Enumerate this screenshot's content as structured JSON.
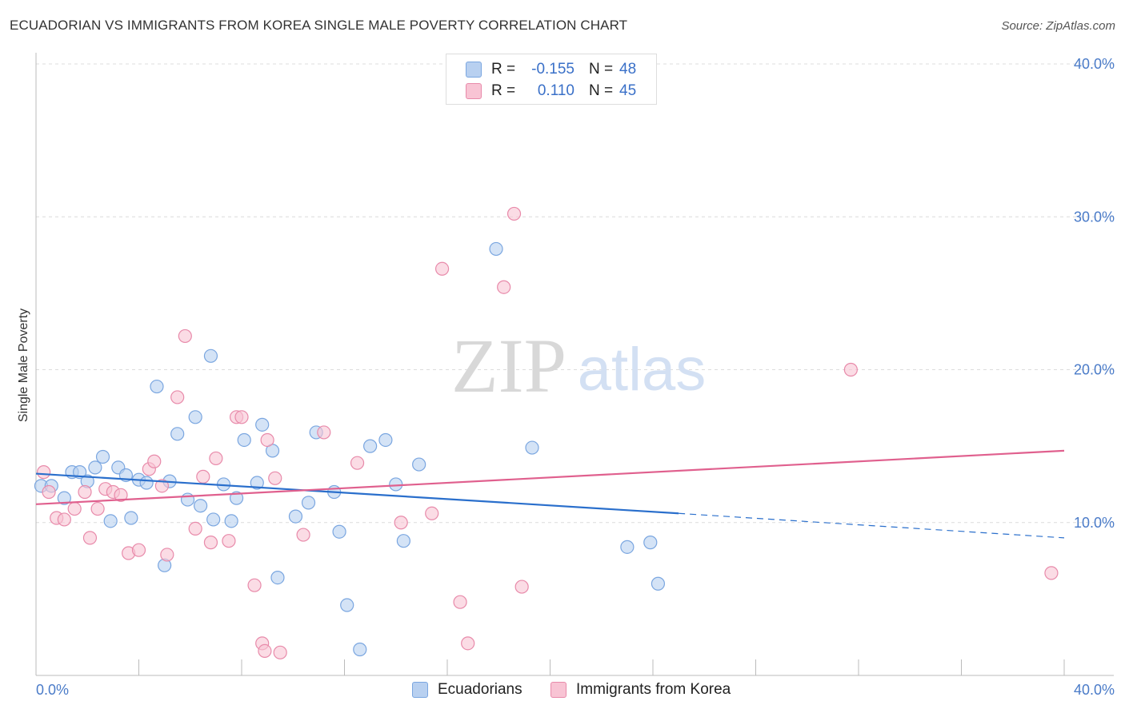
{
  "header": {
    "title": "ECUADORIAN VS IMMIGRANTS FROM KOREA SINGLE MALE POVERTY CORRELATION CHART",
    "source": "Source: ZipAtlas.com"
  },
  "colors": {
    "blue_fill": "#b8d0f0",
    "blue_stroke": "#7aa6e0",
    "blue_line": "#2a6fcc",
    "pink_fill": "#f8c4d4",
    "pink_stroke": "#e88aaa",
    "pink_line": "#e0608e",
    "tick_text": "#4a7bc8"
  },
  "legend": {
    "rows": [
      {
        "r_label": "R =",
        "r_value": "-0.155",
        "n_label": "N =",
        "n_value": "48"
      },
      {
        "r_label": "R =",
        "r_value": "0.110",
        "n_label": "N =",
        "n_value": "45"
      }
    ]
  },
  "watermark": {
    "zip": "ZIP",
    "atlas": "atlas"
  },
  "chart_data": {
    "type": "scatter",
    "xlabel": "",
    "ylabel": "Single Male Poverty",
    "xlim": [
      0,
      40
    ],
    "ylim": [
      0,
      40
    ],
    "x_tick_labels": [
      "0.0%",
      "40.0%"
    ],
    "y_tick_labels": [
      {
        "value": 10,
        "label": "10.0%"
      },
      {
        "value": 20,
        "label": "20.0%"
      },
      {
        "value": 30,
        "label": "30.0%"
      },
      {
        "value": 40,
        "label": "40.0%"
      }
    ],
    "grid": "horizontal dashed",
    "series": [
      {
        "name": "Ecuadorians",
        "color": "#7aa6e0",
        "trend": {
          "x": [
            0,
            25
          ],
          "y": [
            13.2,
            10.6
          ],
          "dashed_to": [
            40,
            9.0
          ]
        },
        "points": [
          [
            0.2,
            12.4
          ],
          [
            0.6,
            12.4
          ],
          [
            1.1,
            11.6
          ],
          [
            1.4,
            13.3
          ],
          [
            1.7,
            13.3
          ],
          [
            2.0,
            12.7
          ],
          [
            2.3,
            13.6
          ],
          [
            2.6,
            14.3
          ],
          [
            2.9,
            10.1
          ],
          [
            3.2,
            13.6
          ],
          [
            3.5,
            13.1
          ],
          [
            3.7,
            10.3
          ],
          [
            4.0,
            12.8
          ],
          [
            4.3,
            12.6
          ],
          [
            4.7,
            18.9
          ],
          [
            5.0,
            7.2
          ],
          [
            5.2,
            12.7
          ],
          [
            5.5,
            15.8
          ],
          [
            5.9,
            11.5
          ],
          [
            6.2,
            16.9
          ],
          [
            6.4,
            11.1
          ],
          [
            6.8,
            20.9
          ],
          [
            6.9,
            10.2
          ],
          [
            7.3,
            12.5
          ],
          [
            7.6,
            10.1
          ],
          [
            7.8,
            11.6
          ],
          [
            8.1,
            15.4
          ],
          [
            8.6,
            12.6
          ],
          [
            8.8,
            16.4
          ],
          [
            9.2,
            14.7
          ],
          [
            9.4,
            6.4
          ],
          [
            10.1,
            10.4
          ],
          [
            10.6,
            11.3
          ],
          [
            10.9,
            15.9
          ],
          [
            11.6,
            12.0
          ],
          [
            11.8,
            9.4
          ],
          [
            12.1,
            4.6
          ],
          [
            12.6,
            1.7
          ],
          [
            13.0,
            15.0
          ],
          [
            13.6,
            15.4
          ],
          [
            14.0,
            12.5
          ],
          [
            14.3,
            8.8
          ],
          [
            14.9,
            13.8
          ],
          [
            17.9,
            27.9
          ],
          [
            19.3,
            14.9
          ],
          [
            23.0,
            8.4
          ],
          [
            23.9,
            8.7
          ],
          [
            24.2,
            6.0
          ]
        ]
      },
      {
        "name": "Immigrants from Korea",
        "color": "#e88aaa",
        "trend": {
          "x": [
            0,
            40
          ],
          "y": [
            11.2,
            14.7
          ]
        },
        "points": [
          [
            0.3,
            13.3
          ],
          [
            0.5,
            12.0
          ],
          [
            0.8,
            10.3
          ],
          [
            1.1,
            10.2
          ],
          [
            1.5,
            10.9
          ],
          [
            1.9,
            12.0
          ],
          [
            2.1,
            9.0
          ],
          [
            2.4,
            10.9
          ],
          [
            2.7,
            12.2
          ],
          [
            3.0,
            12.0
          ],
          [
            3.3,
            11.8
          ],
          [
            3.6,
            8.0
          ],
          [
            4.0,
            8.2
          ],
          [
            4.4,
            13.5
          ],
          [
            4.6,
            14.0
          ],
          [
            4.9,
            12.4
          ],
          [
            5.1,
            7.9
          ],
          [
            5.5,
            18.2
          ],
          [
            5.8,
            22.2
          ],
          [
            6.2,
            9.6
          ],
          [
            6.5,
            13.0
          ],
          [
            6.8,
            8.7
          ],
          [
            7.0,
            14.2
          ],
          [
            7.5,
            8.8
          ],
          [
            7.8,
            16.9
          ],
          [
            8.0,
            16.9
          ],
          [
            8.5,
            5.9
          ],
          [
            8.8,
            2.1
          ],
          [
            8.9,
            1.6
          ],
          [
            9.0,
            15.4
          ],
          [
            9.3,
            12.9
          ],
          [
            9.5,
            1.5
          ],
          [
            10.4,
            9.2
          ],
          [
            11.2,
            15.9
          ],
          [
            12.5,
            13.9
          ],
          [
            14.2,
            10.0
          ],
          [
            15.4,
            10.6
          ],
          [
            15.8,
            26.6
          ],
          [
            16.5,
            4.8
          ],
          [
            16.8,
            2.1
          ],
          [
            18.2,
            25.4
          ],
          [
            18.6,
            30.2
          ],
          [
            18.9,
            5.8
          ],
          [
            31.7,
            20.0
          ],
          [
            39.5,
            6.7
          ]
        ]
      }
    ]
  }
}
